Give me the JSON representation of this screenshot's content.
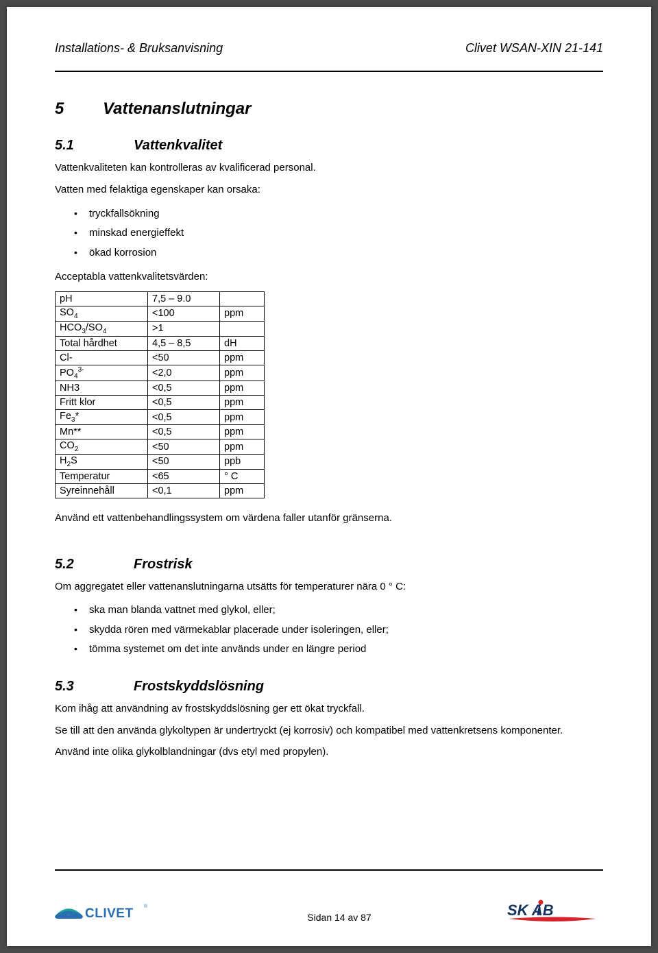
{
  "header": {
    "left": "Installations- & Bruksanvisning",
    "right": "Clivet WSAN-XIN 21-141"
  },
  "section5": {
    "number": "5",
    "title": "Vattenanslutningar",
    "s51": {
      "number": "5.1",
      "title": "Vattenkvalitet",
      "p1": "Vattenkvaliteten kan kontrolleras av kvalificerad personal.",
      "p2": "Vatten med felaktiga egenskaper kan orsaka:",
      "bullets": [
        "tryckfallsökning",
        "minskad energieffekt",
        "ökad korrosion"
      ],
      "p3": "Acceptabla vattenkvalitetsvärden:",
      "table": {
        "columns_width": [
          "135px",
          "105px",
          "65px"
        ],
        "rows": [
          {
            "label_html": "pH",
            "value": "7,5 – 9.0",
            "unit": ""
          },
          {
            "label_html": "SO<sub>4</sub>",
            "value": "<100",
            "unit": "ppm"
          },
          {
            "label_html": "HCO<sub>3</sub>/SO<sub>4</sub>",
            "value": ">1",
            "unit": ""
          },
          {
            "label_html": "Total hårdhet",
            "value": "4,5 – 8,5",
            "unit": "dH"
          },
          {
            "label_html": "Cl-",
            "value": "<50",
            "unit": "ppm"
          },
          {
            "label_html": "PO<sub>4</sub><sup>3-</sup>",
            "value": "<2,0",
            "unit": "ppm"
          },
          {
            "label_html": "NH3",
            "value": "<0,5",
            "unit": "ppm"
          },
          {
            "label_html": "Fritt klor",
            "value": "<0,5",
            "unit": "ppm"
          },
          {
            "label_html": "Fe<sub>3</sub>*",
            "value": "<0,5",
            "unit": "ppm"
          },
          {
            "label_html": "Mn**",
            "value": "<0,5",
            "unit": "ppm"
          },
          {
            "label_html": "CO<sub>2</sub>",
            "value": "<50",
            "unit": "ppm"
          },
          {
            "label_html": "H<sub>2</sub>S",
            "value": "<50",
            "unit": "ppb"
          },
          {
            "label_html": "Temperatur",
            "value": "<65",
            "unit": "° C"
          },
          {
            "label_html": "Syreinnehåll",
            "value": "<0,1",
            "unit": "ppm"
          }
        ]
      },
      "p4": "Använd ett vattenbehandlingssystem om värdena faller utanför gränserna."
    },
    "s52": {
      "number": "5.2",
      "title": "Frostrisk",
      "p1": "Om aggregatet eller vattenanslutningarna utsätts för temperaturer nära 0 ° C:",
      "bullets": [
        "ska man blanda vattnet med glykol, eller;",
        "skydda rören med värmekablar placerade under isoleringen, eller;",
        "tömma systemet om det inte används under en längre period"
      ]
    },
    "s53": {
      "number": "5.3",
      "title": "Frostskyddslösning",
      "p1": "Kom ihåg att användning av frostskyddslösning ger ett ökat tryckfall.",
      "p2": "Se till att den använda glykoltypen är undertryckt (ej korrosiv) och kompatibel med vattenkretsens komponenter.",
      "p3": "Använd inte olika glykolblandningar (dvs etyl med propylen)."
    }
  },
  "footer": {
    "page_text": "Sidan 14 av 87"
  },
  "logos": {
    "clivet": {
      "brand_color_arc_teal": "#1fa19a",
      "brand_color_arc_blue": "#2a6db0",
      "brand_color_block": "#2a6db0",
      "text": "CLIVET",
      "text_color": "#2a6db0",
      "registered": "®",
      "registered_color": "#2a6db0"
    },
    "skiab": {
      "text_color": "#17335f",
      "i_dot_color": "#d8232a",
      "swoosh_color": "#d8232a",
      "text": "SKiAB"
    }
  }
}
